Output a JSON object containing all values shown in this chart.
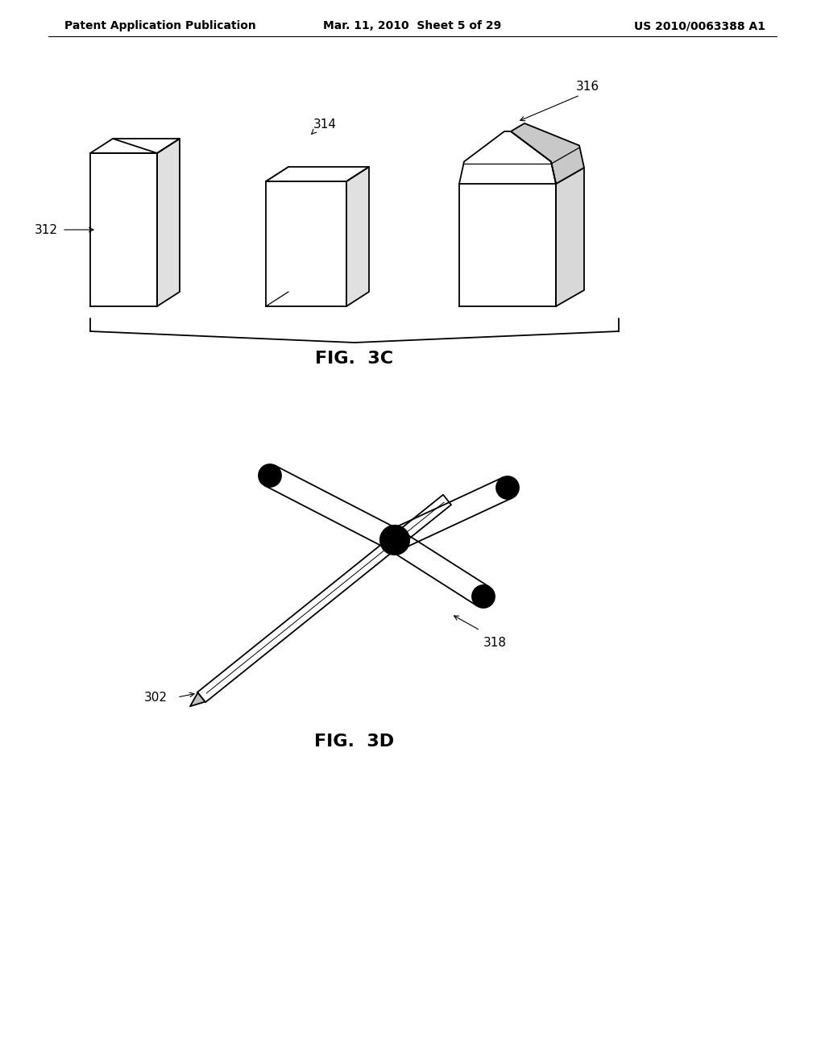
{
  "bg_color": "#ffffff",
  "line_color": "#000000",
  "header_left": "Patent Application Publication",
  "header_mid": "Mar. 11, 2010  Sheet 5 of 29",
  "header_right": "US 2010/0063388 A1",
  "fig3c_label": "FIG.  3C",
  "fig3d_label": "FIG.  3D",
  "label_312": "312",
  "label_314": "314",
  "label_316": "316",
  "label_302": "302",
  "label_318": "318",
  "header_fontsize": 10,
  "label_fontsize": 11,
  "fig_label_fontsize": 16
}
